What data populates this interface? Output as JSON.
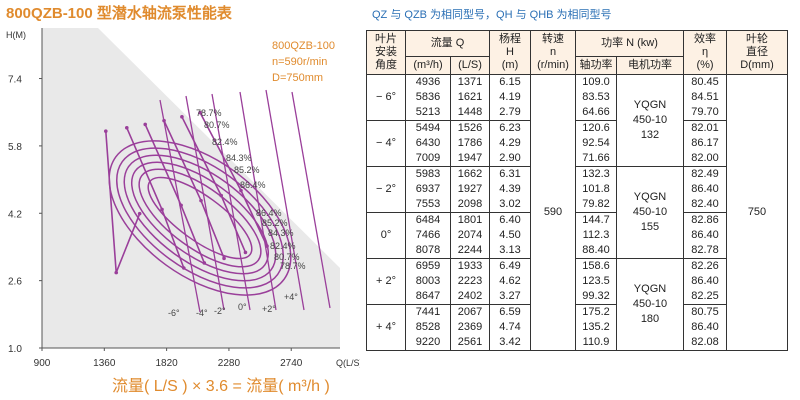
{
  "title": "800QZB-100 型潜水轴流泵性能表",
  "note": "QZ 与 QZB 为相同型号，QH 与 QHB 为相同型号",
  "info": {
    "model": "800QZB-100",
    "speed": "n=590r/min",
    "diameter": "D=750mm"
  },
  "formula": "流量( L/S ) × 3.6 = 流量( m³/h )",
  "chart_data": {
    "type": "line",
    "title": "",
    "xlabel": "Q(L/S)",
    "ylabel": "H(M)",
    "xlim": [
      900,
      3100
    ],
    "ylim": [
      1.0,
      8.6
    ],
    "x_ticks": [
      900,
      1360,
      1820,
      2280,
      2740
    ],
    "y_ticks": [
      1.0,
      2.6,
      4.2,
      5.8,
      7.4
    ],
    "x_tick_labels": [
      "900",
      "1360",
      "1820",
      "2280",
      "2740",
      "Q(L/S)"
    ],
    "y_tick_labels": [
      "1.0",
      "2.6",
      "4.2",
      "5.8",
      "7.4",
      "H(M)"
    ],
    "blade_angle_curves": [
      {
        "name": "-6°",
        "points": [
          [
            1371,
            6.15
          ],
          [
            1448,
            2.79
          ],
          [
            1621,
            4.19
          ]
        ]
      },
      {
        "name": "-4°",
        "points": [
          [
            1526,
            6.23
          ],
          [
            1786,
            4.29
          ],
          [
            1947,
            2.9
          ]
        ]
      },
      {
        "name": "-2°",
        "points": [
          [
            1662,
            6.31
          ],
          [
            1927,
            4.39
          ],
          [
            2098,
            3.02
          ]
        ]
      },
      {
        "name": "0°",
        "points": [
          [
            1801,
            6.4
          ],
          [
            2074,
            4.5
          ],
          [
            2244,
            3.13
          ]
        ]
      },
      {
        "name": "+2°",
        "points": [
          [
            1933,
            6.49
          ],
          [
            2223,
            4.62
          ],
          [
            2402,
            3.27
          ]
        ]
      },
      {
        "name": "+4°",
        "points": [
          [
            2067,
            6.59
          ],
          [
            2369,
            4.74
          ],
          [
            2561,
            3.42
          ]
        ]
      }
    ],
    "efficiency_labels": [
      "78.7%",
      "80.7%",
      "82.4%",
      "84.3%",
      "85.2%",
      "86.4%",
      "86.4%",
      "85.2%",
      "84.3%",
      "82.4%",
      "80.7%",
      "78.7%"
    ],
    "angle_labels": [
      "-6°",
      "-4°",
      "-2°",
      "0°",
      "+2°",
      "+4°"
    ]
  },
  "table": {
    "headers": {
      "angle": "叶片\n安装\n角度",
      "flow": "流量 Q",
      "flow_m3": "(m³/h)",
      "flow_ls": "(L/S)",
      "head": "杨程\nH\n(m)",
      "speed": "转速\nn\n(r/min)",
      "power": "功率 N  (kw)",
      "shaft_power": "轴功率",
      "motor_power": "电机功率",
      "eff": "效率\nη\n(%)",
      "impeller": "叶轮\n直径\nD(mm)"
    },
    "speed_value": "590",
    "impeller_value": "750",
    "groups": [
      {
        "angle": "− 6°",
        "m3": [
          "4936",
          "5836",
          "5213"
        ],
        "ls": [
          "1371",
          "1621",
          "1448"
        ],
        "h": [
          "6.15",
          "4.19",
          "2.79"
        ],
        "shaft": [
          "109.0",
          "83.53",
          "64.66"
        ],
        "eff": [
          "80.45",
          "84.51",
          "79.70"
        ]
      },
      {
        "angle": "− 4°",
        "m3": [
          "5494",
          "6430",
          "7009"
        ],
        "ls": [
          "1526",
          "1786",
          "1947"
        ],
        "h": [
          "6.23",
          "4.29",
          "2.90"
        ],
        "shaft": [
          "120.6",
          "92.54",
          "71.66"
        ],
        "eff": [
          "82.01",
          "86.17",
          "82.00"
        ]
      },
      {
        "angle": "− 2°",
        "m3": [
          "5983",
          "6937",
          "7553"
        ],
        "ls": [
          "1662",
          "1927",
          "2098"
        ],
        "h": [
          "6.31",
          "4.39",
          "3.02"
        ],
        "shaft": [
          "132.3",
          "101.8",
          "79.82"
        ],
        "eff": [
          "82.49",
          "86.40",
          "82.40"
        ]
      },
      {
        "angle": "0°",
        "m3": [
          "6484",
          "7466",
          "8078"
        ],
        "ls": [
          "1801",
          "2074",
          "2244"
        ],
        "h": [
          "6.40",
          "4.50",
          "3.13"
        ],
        "shaft": [
          "144.7",
          "112.3",
          "88.40"
        ],
        "eff": [
          "82.86",
          "86.40",
          "82.78"
        ]
      },
      {
        "angle": "+ 2°",
        "m3": [
          "6959",
          "8003",
          "8647"
        ],
        "ls": [
          "1933",
          "2223",
          "2402"
        ],
        "h": [
          "6.49",
          "4.62",
          "3.27"
        ],
        "shaft": [
          "158.6",
          "123.5",
          "99.32"
        ],
        "eff": [
          "82.26",
          "86.40",
          "82.25"
        ]
      },
      {
        "angle": "+ 4°",
        "m3": [
          "7441",
          "8528",
          "9220"
        ],
        "ls": [
          "2067",
          "2369",
          "2561"
        ],
        "h": [
          "6.59",
          "4.74",
          "3.42"
        ],
        "shaft": [
          "175.2",
          "135.2",
          "110.9"
        ],
        "eff": [
          "80.75",
          "86.40",
          "82.08"
        ]
      }
    ],
    "motors": [
      "YQGN 450-10 132",
      "YQGN 450-10 155",
      "YQGN 450-10 180"
    ]
  },
  "colors": {
    "accent": "#e08b2e",
    "curve": "#9a3f9a",
    "grid_bg": "#e9e9e9",
    "note": "#2a6fb5",
    "header_bg": "#fdf1e4"
  }
}
